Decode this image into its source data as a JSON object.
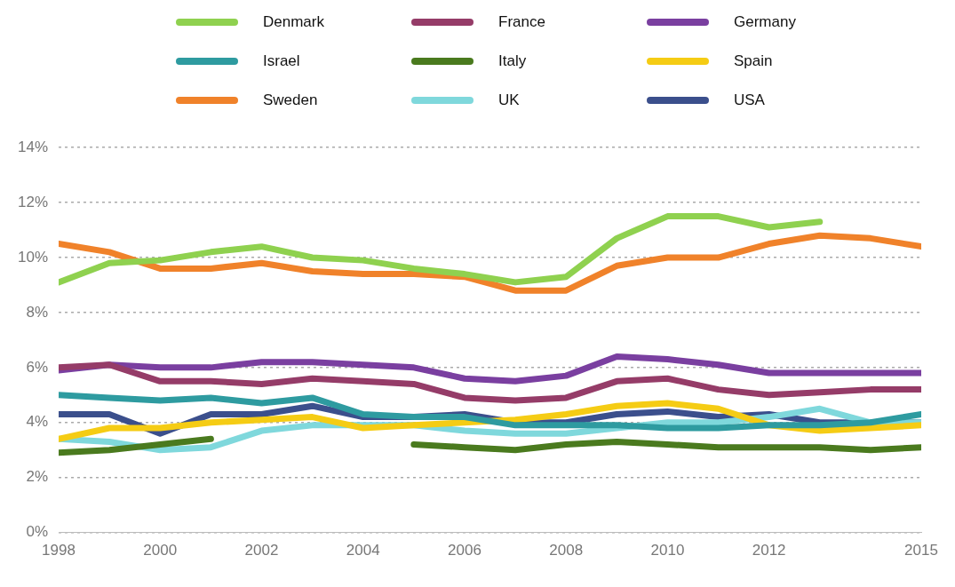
{
  "chart_data": {
    "type": "line",
    "x": [
      1998,
      1999,
      2000,
      2001,
      2002,
      2003,
      2004,
      2005,
      2006,
      2007,
      2008,
      2009,
      2010,
      2011,
      2012,
      2013,
      2014,
      2015
    ],
    "xlim": [
      1998,
      2015
    ],
    "xticks": [
      1998,
      2000,
      2002,
      2004,
      2006,
      2008,
      2010,
      2012,
      2015
    ],
    "ylim": [
      0,
      14
    ],
    "yticks": [
      {
        "value": 0,
        "label": "0%"
      },
      {
        "value": 2,
        "label": "2%"
      },
      {
        "value": 4,
        "label": "4%"
      },
      {
        "value": 6,
        "label": "6%"
      },
      {
        "value": 8,
        "label": "8%"
      },
      {
        "value": 10,
        "label": "10%"
      },
      {
        "value": 12,
        "label": "12%"
      },
      {
        "value": 14,
        "label": "14%"
      }
    ],
    "grid": "y",
    "legend": "top",
    "marker": "none",
    "line_style": "solid",
    "series": [
      {
        "name": "Denmark",
        "color": "#8fd14f",
        "values": [
          9.1,
          9.8,
          9.9,
          10.2,
          10.4,
          10.0,
          9.9,
          9.6,
          9.4,
          9.1,
          9.3,
          10.7,
          11.5,
          11.5,
          11.1,
          11.3,
          null,
          null
        ]
      },
      {
        "name": "France",
        "color": "#953c68",
        "values": [
          6.0,
          6.1,
          5.5,
          5.5,
          5.4,
          5.6,
          5.5,
          5.4,
          4.9,
          4.8,
          4.9,
          5.5,
          5.6,
          5.2,
          5.0,
          5.1,
          5.2,
          5.2
        ]
      },
      {
        "name": "Germany",
        "color": "#7a3fa0",
        "values": [
          5.9,
          6.1,
          6.0,
          6.0,
          6.2,
          6.2,
          6.1,
          6.0,
          5.6,
          5.5,
          5.7,
          6.4,
          6.3,
          6.1,
          5.8,
          5.8,
          5.8,
          5.8
        ]
      },
      {
        "name": "Israel",
        "color": "#2e9ba0",
        "values": [
          5.0,
          4.9,
          4.8,
          4.9,
          4.7,
          4.9,
          4.3,
          4.2,
          4.2,
          3.9,
          3.9,
          3.9,
          3.8,
          3.8,
          3.9,
          3.9,
          4.0,
          4.3
        ]
      },
      {
        "name": "Italy",
        "color": "#4a7a1e",
        "values": [
          2.9,
          3.0,
          3.2,
          3.4,
          null,
          null,
          null,
          3.2,
          3.1,
          3.0,
          3.2,
          3.3,
          3.2,
          3.1,
          3.1,
          3.1,
          3.0,
          3.1
        ]
      },
      {
        "name": "Spain",
        "color": "#f5cc14",
        "values": [
          3.4,
          3.8,
          3.8,
          4.0,
          4.1,
          4.2,
          3.8,
          3.9,
          4.0,
          4.1,
          4.3,
          4.6,
          4.7,
          4.5,
          3.9,
          3.7,
          3.8,
          3.9
        ]
      },
      {
        "name": "Sweden",
        "color": "#f0822a",
        "values": [
          10.5,
          10.2,
          9.6,
          9.6,
          9.8,
          9.5,
          9.4,
          9.4,
          9.3,
          8.8,
          8.8,
          9.7,
          10.0,
          10.0,
          10.5,
          10.8,
          10.7,
          10.4
        ]
      },
      {
        "name": "UK",
        "color": "#7fd8dc",
        "values": [
          3.4,
          3.3,
          3.0,
          3.1,
          3.7,
          3.9,
          3.9,
          3.9,
          3.7,
          3.6,
          3.6,
          3.8,
          4.0,
          4.0,
          4.2,
          4.5,
          4.0,
          4.0
        ]
      },
      {
        "name": "USA",
        "color": "#3b4f8c",
        "values": [
          4.3,
          4.3,
          3.6,
          4.3,
          4.3,
          4.6,
          4.2,
          4.2,
          4.3,
          4.0,
          4.0,
          4.3,
          4.4,
          4.2,
          4.3,
          4.0,
          4.0,
          4.0
        ]
      }
    ]
  }
}
